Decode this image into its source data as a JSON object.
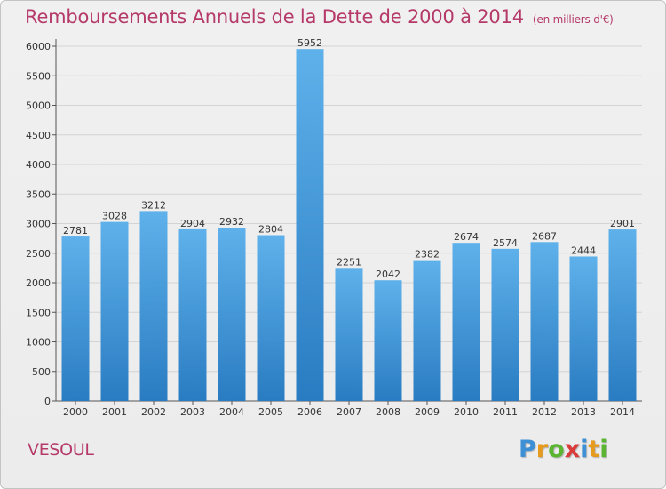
{
  "header": {
    "title": "Remboursements Annuels de la Dette de 2000 à 2014",
    "unit_note": "(en milliers d'€)"
  },
  "footer": {
    "commune": "VESOUL",
    "logo_text": "Proxiti"
  },
  "colors": {
    "bar_top": "#5eb1ea",
    "bar_bottom": "#2a7cc2",
    "title": "#b53a6a",
    "grid": "#d4d4d4"
  },
  "chart_data": {
    "type": "bar",
    "title": "Remboursements Annuels de la Dette de 2000 à 2014",
    "subtitle": "(en milliers d'€)",
    "categories": [
      "2000",
      "2001",
      "2002",
      "2003",
      "2004",
      "2005",
      "2006",
      "2007",
      "2008",
      "2009",
      "2010",
      "2011",
      "2012",
      "2013",
      "2014"
    ],
    "values": [
      2781,
      3028,
      3212,
      2904,
      2932,
      2804,
      5952,
      2251,
      2042,
      2382,
      2674,
      2574,
      2687,
      2444,
      2901
    ],
    "xlabel": "",
    "ylabel": "",
    "ylim": [
      0,
      6000
    ],
    "yticks": [
      0,
      500,
      1000,
      1500,
      2000,
      2500,
      3000,
      3500,
      4000,
      4500,
      5000,
      5500,
      6000
    ],
    "grid": true,
    "data_labels": true
  }
}
